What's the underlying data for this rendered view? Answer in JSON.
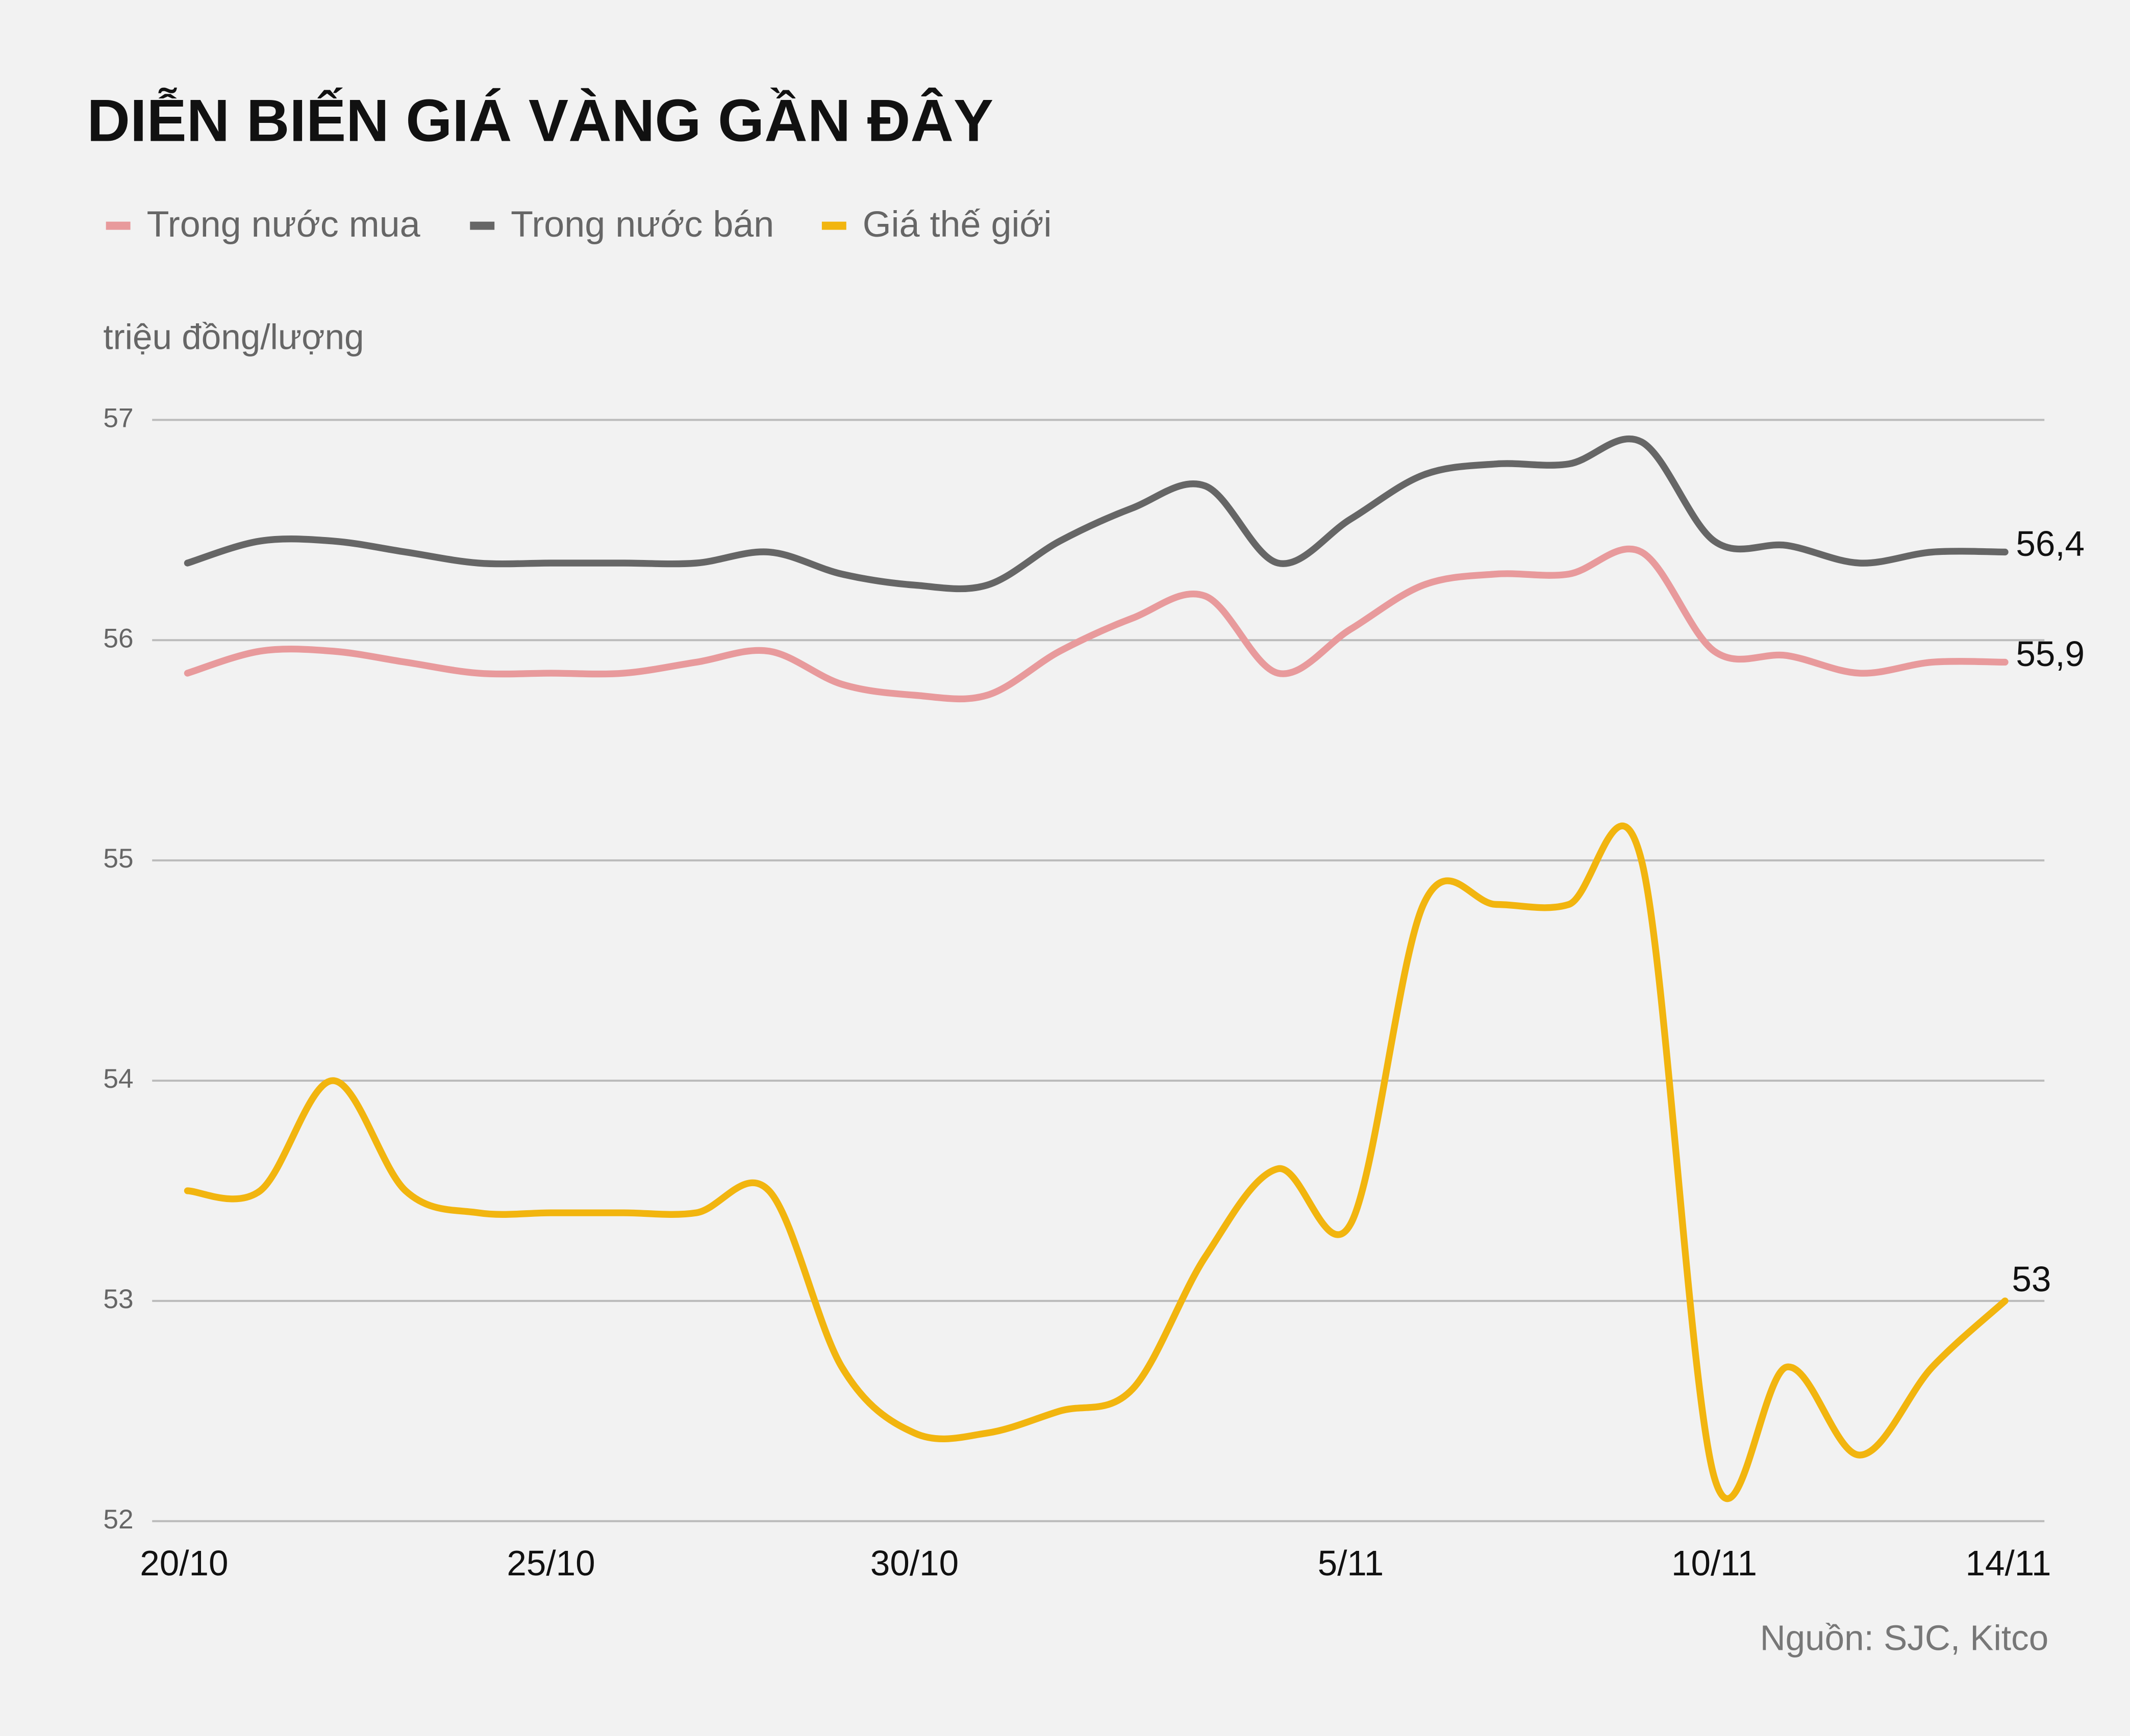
{
  "chart_data": {
    "type": "line",
    "title": "DIỄN BIẾN GIÁ VÀNG GẦN ĐÂY",
    "y_label": "triệu đồng/lượng",
    "source": "Nguồn: SJC, Kitco",
    "categories": [
      "20/10",
      null,
      null,
      null,
      null,
      "25/10",
      null,
      null,
      null,
      null,
      "30/10",
      null,
      null,
      null,
      null,
      null,
      "5/11",
      null,
      null,
      null,
      null,
      "10/11",
      null,
      null,
      null,
      "14/11"
    ],
    "series": [
      {
        "name": "Trong nước mua",
        "color": "#e89a9c",
        "values": [
          55.85,
          55.95,
          55.95,
          55.9,
          55.85,
          55.85,
          55.85,
          55.9,
          55.95,
          55.8,
          55.75,
          55.75,
          55.95,
          56.1,
          56.2,
          55.85,
          56.05,
          56.25,
          56.3,
          56.3,
          56.4,
          55.95,
          55.93,
          55.85,
          55.9,
          55.9
        ],
        "value_labels": [
          null,
          null,
          null,
          null,
          null,
          null,
          null,
          null,
          null,
          null,
          null,
          null,
          null,
          null,
          null,
          null,
          null,
          null,
          null,
          null,
          null,
          null,
          null,
          null,
          null,
          "55,9"
        ]
      },
      {
        "name": "Trong nước bán",
        "color": "#666666",
        "values": [
          56.35,
          56.45,
          56.45,
          56.4,
          56.35,
          56.35,
          56.35,
          56.35,
          56.4,
          56.3,
          56.25,
          56.25,
          56.45,
          56.6,
          56.7,
          56.35,
          56.55,
          56.75,
          56.8,
          56.8,
          56.9,
          56.45,
          56.43,
          56.35,
          56.4,
          56.4
        ],
        "value_labels": [
          null,
          null,
          null,
          null,
          null,
          null,
          null,
          null,
          null,
          null,
          null,
          null,
          null,
          null,
          null,
          null,
          null,
          null,
          null,
          null,
          null,
          null,
          null,
          null,
          null,
          "56,4"
        ]
      },
      {
        "name": "Giá thế giới",
        "color": "#f2b50f",
        "values": [
          53.5,
          53.5,
          54.0,
          53.5,
          53.4,
          53.4,
          53.4,
          53.4,
          53.5,
          52.7,
          52.4,
          52.4,
          52.5,
          52.6,
          53.2,
          53.6,
          53.35,
          54.8,
          54.8,
          54.8,
          55.0,
          52.2,
          52.7,
          52.3,
          52.7,
          53.0
        ],
        "value_labels": [
          null,
          null,
          null,
          null,
          null,
          null,
          null,
          null,
          null,
          null,
          null,
          null,
          null,
          null,
          null,
          null,
          null,
          null,
          null,
          null,
          null,
          null,
          null,
          null,
          null,
          "53"
        ]
      }
    ],
    "ylim": [
      52,
      57
    ],
    "yticks": [
      52,
      53,
      54,
      55,
      56,
      57
    ],
    "grid": true,
    "legend": "top-left"
  }
}
